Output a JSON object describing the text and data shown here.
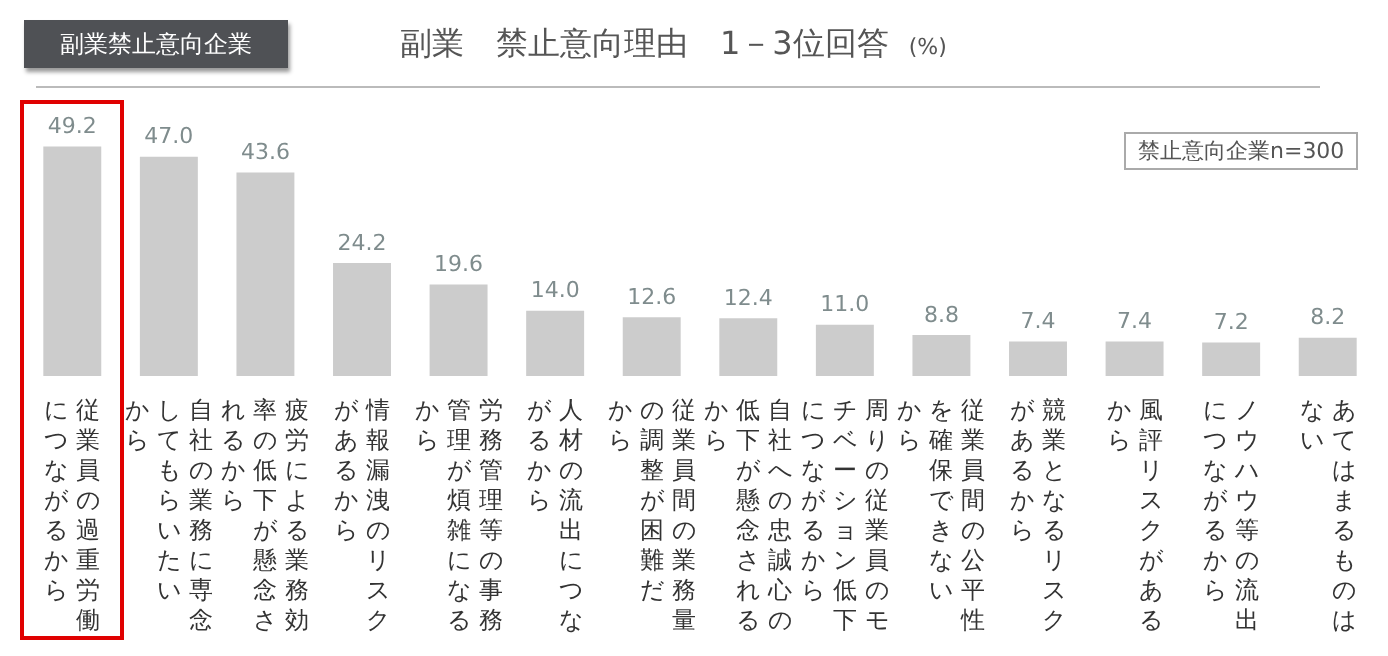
{
  "chart_data": {
    "type": "bar",
    "title": "副業　禁止意向理由　1－3位回答",
    "subtitle": "(%)",
    "annotations": [
      "副業禁止意向企業",
      "禁止意向企業n=300"
    ],
    "categories": [
      "従業員の過重労働につながるから",
      "自社の業務に専念してもらいたいから",
      "疲労による業務効率の低下が懸念されるから",
      "情報漏洩のリスクがあるから",
      "労務管理等の事務管理が煩雑になるから",
      "人材の流出につながるから",
      "従業員間の業務量の調整が困難だから",
      "自社への忠誠心の低下が懸念されるから",
      "周りの従業員のモチベーション低下につながるから",
      "従業員間の公平性を確保できないから",
      "競業となるリスクがあるから",
      "風評リスクがあるから",
      "ノウハウ等の流出につながるから",
      "あてはまるものはない"
    ],
    "values": [
      49.2,
      47.0,
      43.6,
      24.2,
      19.6,
      14.0,
      12.6,
      12.4,
      11.0,
      8.8,
      7.4,
      7.4,
      7.2,
      8.2
    ],
    "value_labels": [
      "49.2",
      "47.0",
      "43.6",
      "24.2",
      "19.6",
      "14.0",
      "12.6",
      "12.4",
      "11.0",
      "8.8",
      "7.4",
      "7.4",
      "7.2",
      "8.2"
    ],
    "color": "#cccccc",
    "grid": false,
    "legend": false
  }
}
